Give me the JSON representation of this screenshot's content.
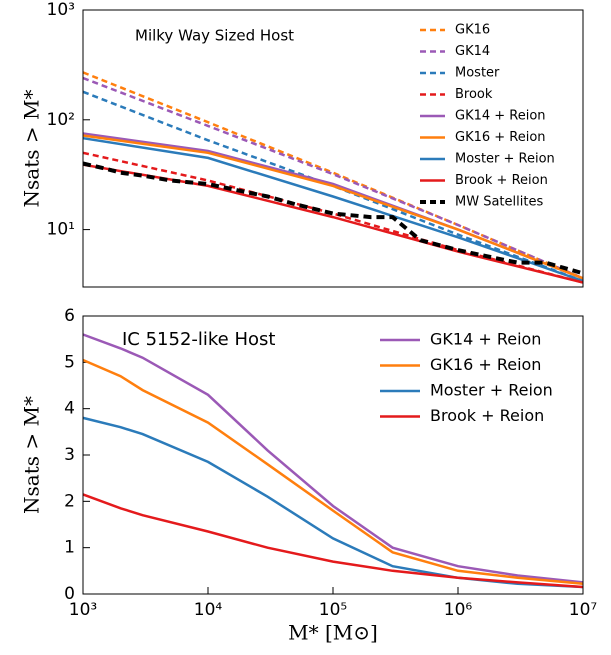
{
  "chart_data": [
    {
      "type": "line",
      "title": "Milky Way Sized Host",
      "y_label": "Nsats > M*",
      "xlog": true,
      "ylog": true,
      "xlim": [
        1000,
        10000000
      ],
      "ylim": [
        3,
        1000
      ],
      "yticks": [
        {
          "value": 10,
          "label": "10¹"
        },
        {
          "value": 100,
          "label": "10²"
        },
        {
          "value": 1000,
          "label": "10³"
        }
      ],
      "legend": "upper right",
      "x": [
        1000,
        10000,
        100000,
        1000000,
        10000000
      ],
      "series": [
        {
          "name": "GK16",
          "color": "#ff7f0e",
          "dash": true,
          "values": [
            270,
            95,
            33,
            11,
            3.6
          ]
        },
        {
          "name": "GK14",
          "color": "#9b59b6",
          "dash": true,
          "values": [
            240,
            88,
            32,
            11,
            3.6
          ]
        },
        {
          "name": "Moster",
          "color": "#2b7bba",
          "dash": true,
          "values": [
            180,
            65,
            25,
            9,
            3.4
          ]
        },
        {
          "name": "Brook",
          "color": "#e41a1c",
          "dash": true,
          "values": [
            50,
            28,
            14,
            6.5,
            3.3
          ]
        },
        {
          "name": "GK14 + Reion",
          "color": "#9b59b6",
          "dash": false,
          "values": [
            75,
            52,
            26,
            10,
            3.6
          ]
        },
        {
          "name": "GK16 + Reion",
          "color": "#ff7f0e",
          "dash": false,
          "values": [
            72,
            50,
            25,
            10,
            3.6
          ]
        },
        {
          "name": "Moster + Reion",
          "color": "#2b7bba",
          "dash": false,
          "values": [
            68,
            45,
            20,
            8.5,
            3.4
          ]
        },
        {
          "name": "Brook + Reion",
          "color": "#e41a1c",
          "dash": false,
          "values": [
            39,
            25,
            13,
            6.3,
            3.3
          ]
        },
        {
          "name": "MW Satellites",
          "color": "#000000",
          "dash": true,
          "thick": true,
          "x": [
            1000,
            1500,
            2000,
            3000,
            5000,
            7000,
            10000,
            20000,
            30000,
            50000,
            100000,
            200000,
            300000,
            500000,
            1000000,
            2000000,
            3000000,
            5000000,
            10000000
          ],
          "values": [
            40,
            36,
            33,
            31,
            28,
            27,
            26,
            22,
            20,
            17,
            14,
            13,
            13,
            8,
            6.5,
            5.5,
            5,
            5,
            4
          ]
        }
      ]
    },
    {
      "type": "line",
      "title": "IC 5152-like Host",
      "y_label": "Nsats > M*",
      "x_label": "M* [M⊙]",
      "xlog": true,
      "ylog": false,
      "xlim": [
        1000,
        10000000
      ],
      "ylim": [
        0,
        6
      ],
      "xticks": [
        {
          "value": 1000,
          "label": "10³"
        },
        {
          "value": 10000,
          "label": "10⁴"
        },
        {
          "value": 100000,
          "label": "10⁵"
        },
        {
          "value": 1000000,
          "label": "10⁶"
        },
        {
          "value": 10000000,
          "label": "10⁷"
        }
      ],
      "yticks": [
        0,
        1,
        2,
        3,
        4,
        5,
        6
      ],
      "legend": "upper right",
      "x": [
        1000,
        2000,
        3000,
        10000,
        30000,
        100000,
        300000,
        1000000,
        3000000,
        10000000
      ],
      "series": [
        {
          "name": "GK14 + Reion",
          "color": "#9b59b6",
          "dash": false,
          "values": [
            5.6,
            5.3,
            5.1,
            4.3,
            3.1,
            1.9,
            1.0,
            0.6,
            0.4,
            0.25
          ]
        },
        {
          "name": "GK16 + Reion",
          "color": "#ff7f0e",
          "dash": false,
          "values": [
            5.05,
            4.7,
            4.4,
            3.7,
            2.8,
            1.8,
            0.9,
            0.5,
            0.35,
            0.22
          ]
        },
        {
          "name": "Moster + Reion",
          "color": "#2b7bba",
          "dash": false,
          "values": [
            3.8,
            3.6,
            3.45,
            2.85,
            2.1,
            1.2,
            0.6,
            0.35,
            0.22,
            0.15
          ]
        },
        {
          "name": "Brook + Reion",
          "color": "#e41a1c",
          "dash": false,
          "values": [
            2.15,
            1.85,
            1.7,
            1.35,
            1.0,
            0.7,
            0.5,
            0.35,
            0.25,
            0.15
          ]
        }
      ]
    }
  ]
}
